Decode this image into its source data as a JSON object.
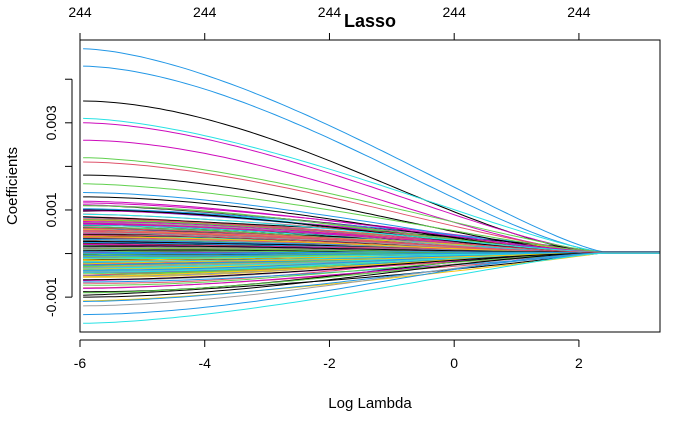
{
  "chart_data": {
    "type": "line",
    "title": "Lasso",
    "xlabel": "Log Lambda",
    "ylabel": "Coefficients",
    "xlim": [
      -6.0,
      3.3
    ],
    "ylim": [
      -0.0018,
      0.0049
    ],
    "x_ticks": [
      -6,
      -4,
      -2,
      0,
      2
    ],
    "x_tick_labels": [
      "-6",
      "-4",
      "-2",
      "0",
      "2"
    ],
    "y_ticks": [
      -0.001,
      0.001,
      0.003
    ],
    "y_tick_labels": [
      "-0.001",
      "0.001",
      "0.003"
    ],
    "y_minor_ticks": [
      -0.001,
      0.0,
      0.001,
      0.002,
      0.003,
      0.004
    ],
    "top_axis": {
      "ticks": [
        -6,
        -4,
        -2,
        0,
        2
      ],
      "labels": [
        "244",
        "244",
        "244",
        "244",
        "244"
      ]
    },
    "n_paths": 244,
    "curve_shape": "coefficient paths shrink toward 0 as log lambda increases, all reaching ~0 by 2.5",
    "converge_x": 2.4,
    "endpoint_value": 2e-05,
    "palette": [
      "#000000",
      "#DF536B",
      "#61D04F",
      "#2297E6",
      "#28E2E5",
      "#CD0BBC",
      "#F5C710",
      "#9E9E9E"
    ],
    "highlighted_series": [
      {
        "start": 0.0047,
        "end": 4e-05,
        "color": "#2297E6"
      },
      {
        "start": 0.0043,
        "end": 4e-05,
        "color": "#2297E6"
      },
      {
        "start": 0.0035,
        "end": 3e-05,
        "color": "#000000"
      },
      {
        "start": 0.0031,
        "end": 3e-05,
        "color": "#28E2E5"
      },
      {
        "start": 0.003,
        "end": 3e-05,
        "color": "#CD0BBC"
      },
      {
        "start": 0.0026,
        "end": 3e-05,
        "color": "#CD0BBC"
      },
      {
        "start": 0.0022,
        "end": 3e-05,
        "color": "#61D04F"
      },
      {
        "start": 0.0021,
        "end": 3e-05,
        "color": "#DF536B"
      },
      {
        "start": 0.0018,
        "end": 3e-05,
        "color": "#000000"
      },
      {
        "start": 0.0016,
        "end": 2e-05,
        "color": "#61D04F"
      },
      {
        "start": 0.0014,
        "end": 2e-05,
        "color": "#2297E6"
      },
      {
        "start": 0.0013,
        "end": 2e-05,
        "color": "#000000"
      },
      {
        "start": 0.0012,
        "end": 2e-05,
        "color": "#CD0BBC"
      },
      {
        "start": 0.0011,
        "end": 2e-05,
        "color": "#61D04F"
      },
      {
        "start": 0.001,
        "end": 2e-05,
        "color": "#000000"
      },
      {
        "start": 0.0009,
        "end": 2e-05,
        "color": "#28E2E5"
      },
      {
        "start": 0.0008,
        "end": 2e-05,
        "color": "#DF536B"
      },
      {
        "start": -0.0006,
        "end": 1e-05,
        "color": "#000000"
      },
      {
        "start": -0.0008,
        "end": 1e-05,
        "color": "#CD0BBC"
      },
      {
        "start": -0.0009,
        "end": 1e-05,
        "color": "#61D04F"
      },
      {
        "start": -0.001,
        "end": 1e-05,
        "color": "#000000"
      },
      {
        "start": -0.0011,
        "end": 1e-05,
        "color": "#2297E6"
      },
      {
        "start": -0.0012,
        "end": 1e-05,
        "color": "#9E9E9E"
      },
      {
        "start": -0.0014,
        "end": 1e-05,
        "color": "#2297E6"
      },
      {
        "start": -0.0016,
        "end": 1e-05,
        "color": "#28E2E5"
      }
    ],
    "grid": false,
    "legend": "none"
  }
}
